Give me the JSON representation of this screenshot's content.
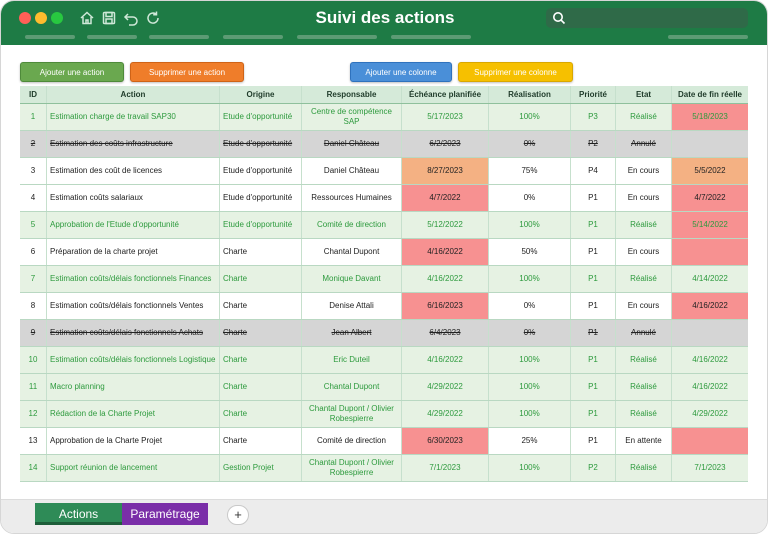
{
  "window": {
    "title": "Suivi des actions",
    "search_placeholder": ""
  },
  "toolbar": {
    "add_action": "Ajouter une action",
    "delete_action": "Supprimer une action",
    "add_column": "Ajouter une colonne",
    "delete_column": "Supprimer une colonne"
  },
  "table": {
    "headers": {
      "id": "ID",
      "action": "Action",
      "origin": "Origine",
      "responsible": "Responsable",
      "planned": "Échéance planifiée",
      "progress": "Réalisation",
      "priority": "Priorité",
      "status": "Etat",
      "end_date": "Date de fin réelle"
    },
    "rows": [
      {
        "id": "1",
        "action": "Estimation charge de travail SAP30",
        "origin": "Etude d'opportunité",
        "responsible": "Centre de compétence SAP",
        "planned": "5/17/2023",
        "progress": "100%",
        "priority": "P3",
        "status": "Réalisé",
        "end_date": "5/18/2023"
      },
      {
        "id": "2",
        "action": "Estimation des coûts infrastructure",
        "origin": "Etude d'opportunité",
        "responsible": "Daniel Château",
        "planned": "6/2/2023",
        "progress": "0%",
        "priority": "P2",
        "status": "Annulé",
        "end_date": ""
      },
      {
        "id": "3",
        "action": "Estimation des coût de licences",
        "origin": "Etude d'opportunité",
        "responsible": "Daniel Château",
        "planned": "8/27/2023",
        "progress": "75%",
        "priority": "P4",
        "status": "En cours",
        "end_date": "5/5/2022"
      },
      {
        "id": "4",
        "action": "Estimation coûts salariaux",
        "origin": "Etude d'opportunité",
        "responsible": "Ressources Humaines",
        "planned": "4/7/2022",
        "progress": "0%",
        "priority": "P1",
        "status": "En cours",
        "end_date": "4/7/2022"
      },
      {
        "id": "5",
        "action": "Approbation de l'Etude d'opportunité",
        "origin": "Etude d'opportunité",
        "responsible": "Comité de direction",
        "planned": "5/12/2022",
        "progress": "100%",
        "priority": "P1",
        "status": "Réalisé",
        "end_date": "5/14/2022"
      },
      {
        "id": "6",
        "action": "Préparation de la charte projet",
        "origin": "Charte",
        "responsible": "Chantal Dupont",
        "planned": "4/16/2022",
        "progress": "50%",
        "priority": "P1",
        "status": "En cours",
        "end_date": ""
      },
      {
        "id": "7",
        "action": "Estimation coûts/délais fonctionnels Finances",
        "origin": "Charte",
        "responsible": "Monique Davant",
        "planned": "4/16/2022",
        "progress": "100%",
        "priority": "P1",
        "status": "Réalisé",
        "end_date": "4/14/2022"
      },
      {
        "id": "8",
        "action": "Estimation coûts/délais fonctionnels Ventes",
        "origin": "Charte",
        "responsible": "Denise Attali",
        "planned": "6/16/2023",
        "progress": "0%",
        "priority": "P1",
        "status": "En cours",
        "end_date": "4/16/2022"
      },
      {
        "id": "9",
        "action": "Estimation coûts/délais fonctionnels Achats",
        "origin": "Charte",
        "responsible": "Jean Albert",
        "planned": "6/4/2023",
        "progress": "0%",
        "priority": "P1",
        "status": "Annulé",
        "end_date": ""
      },
      {
        "id": "10",
        "action": "Estimation coûts/délais fonctionnels Logistique",
        "origin": "Charte",
        "responsible": "Eric Duteil",
        "planned": "4/16/2022",
        "progress": "100%",
        "priority": "P1",
        "status": "Réalisé",
        "end_date": "4/16/2022"
      },
      {
        "id": "11",
        "action": "Macro planning",
        "origin": "Charte",
        "responsible": "Chantal Dupont",
        "planned": "4/29/2022",
        "progress": "100%",
        "priority": "P1",
        "status": "Réalisé",
        "end_date": "4/16/2022"
      },
      {
        "id": "12",
        "action": "Rédaction de la Charte Projet",
        "origin": "Charte",
        "responsible": "Chantal Dupont / Olivier Robespierre",
        "planned": "4/29/2022",
        "progress": "100%",
        "priority": "P1",
        "status": "Réalisé",
        "end_date": "4/29/2022"
      },
      {
        "id": "13",
        "action": "Approbation de la Charte Projet",
        "origin": "Charte",
        "responsible": "Comité de direction",
        "planned": "6/30/2023",
        "progress": "25%",
        "priority": "P1",
        "status": "En attente",
        "end_date": ""
      },
      {
        "id": "14",
        "action": "Support réunion de lancement",
        "origin": "Gestion Projet",
        "responsible": "Chantal Dupont / Olivier Robespierre",
        "planned": "7/1/2023",
        "progress": "100%",
        "priority": "P2",
        "status": "Réalisé",
        "end_date": "7/1/2023"
      }
    ]
  },
  "tabs": {
    "actions": "Actions",
    "settings": "Paramétrage",
    "add": "+"
  }
}
